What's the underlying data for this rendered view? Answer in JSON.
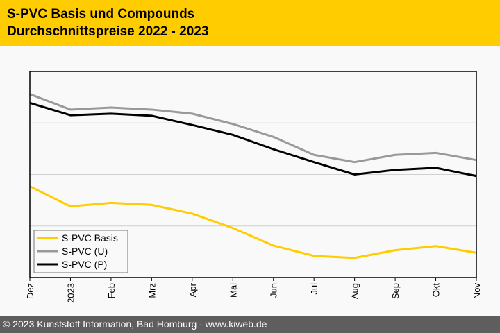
{
  "header": {
    "title": "S-PVC Basis und Compounds",
    "subtitle": "Durchschnittspreise 2022 - 2023"
  },
  "footer": {
    "text": "© 2023 Kunststoff Information, Bad Homburg - www.kiweb.de"
  },
  "colors": {
    "header_bg": "#ffcc00",
    "footer_bg": "#5e5e5e",
    "basis": "#ffcc00",
    "u": "#999999",
    "p": "#000000"
  },
  "chart_data": {
    "type": "line",
    "title": "S-PVC Basis und Compounds Durchschnittspreise 2022 - 2023",
    "xlabel": "",
    "ylabel": "",
    "categories": [
      "Dez",
      "2023",
      "Feb",
      "Mrz",
      "Apr",
      "Mai",
      "Jun",
      "Jul",
      "Aug",
      "Sep",
      "Okt",
      "Nov"
    ],
    "ylim": [
      0,
      4
    ],
    "y_gridlines": [
      1,
      2,
      3
    ],
    "y_tick_labels_visible": false,
    "grid": true,
    "legend": {
      "placement": "bottom-left"
    },
    "series": [
      {
        "name": "S-PVC Basis",
        "color": "#ffcc00",
        "values": [
          1.77,
          1.38,
          1.45,
          1.41,
          1.24,
          0.96,
          0.62,
          0.42,
          0.38,
          0.53,
          0.61,
          0.48
        ]
      },
      {
        "name": "S-PVC (U)",
        "color": "#999999",
        "values": [
          3.56,
          3.26,
          3.3,
          3.26,
          3.18,
          2.98,
          2.73,
          2.38,
          2.24,
          2.38,
          2.42,
          2.28
        ]
      },
      {
        "name": "S-PVC (P)",
        "color": "#000000",
        "values": [
          3.39,
          3.15,
          3.18,
          3.14,
          2.96,
          2.77,
          2.49,
          2.24,
          2.0,
          2.09,
          2.13,
          1.97
        ]
      }
    ]
  }
}
